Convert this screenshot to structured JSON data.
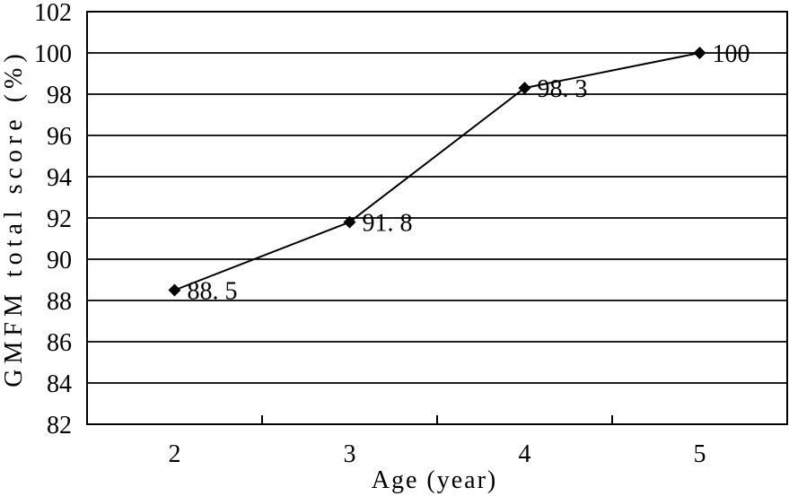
{
  "chart_data": {
    "type": "line",
    "title": "",
    "xlabel": "Age (year)",
    "ylabel": "GMFM total score (%)",
    "x": [
      2,
      3,
      4,
      5
    ],
    "xticklabels": [
      "2",
      "3",
      "4",
      "5"
    ],
    "values": [
      88.5,
      91.8,
      98.3,
      100
    ],
    "point_labels": [
      "88. 5",
      "91. 8",
      "98. 3",
      "100"
    ],
    "ylim": [
      82,
      102
    ],
    "yticks": [
      82,
      84,
      86,
      88,
      90,
      92,
      94,
      96,
      98,
      100,
      102
    ],
    "ytick_step": 2,
    "grid": "horizontal",
    "legend": "none",
    "marker": "diamond",
    "line_color": "#000000",
    "grid_color": "#000000",
    "text_color": "#000000",
    "background": "#ffffff"
  }
}
